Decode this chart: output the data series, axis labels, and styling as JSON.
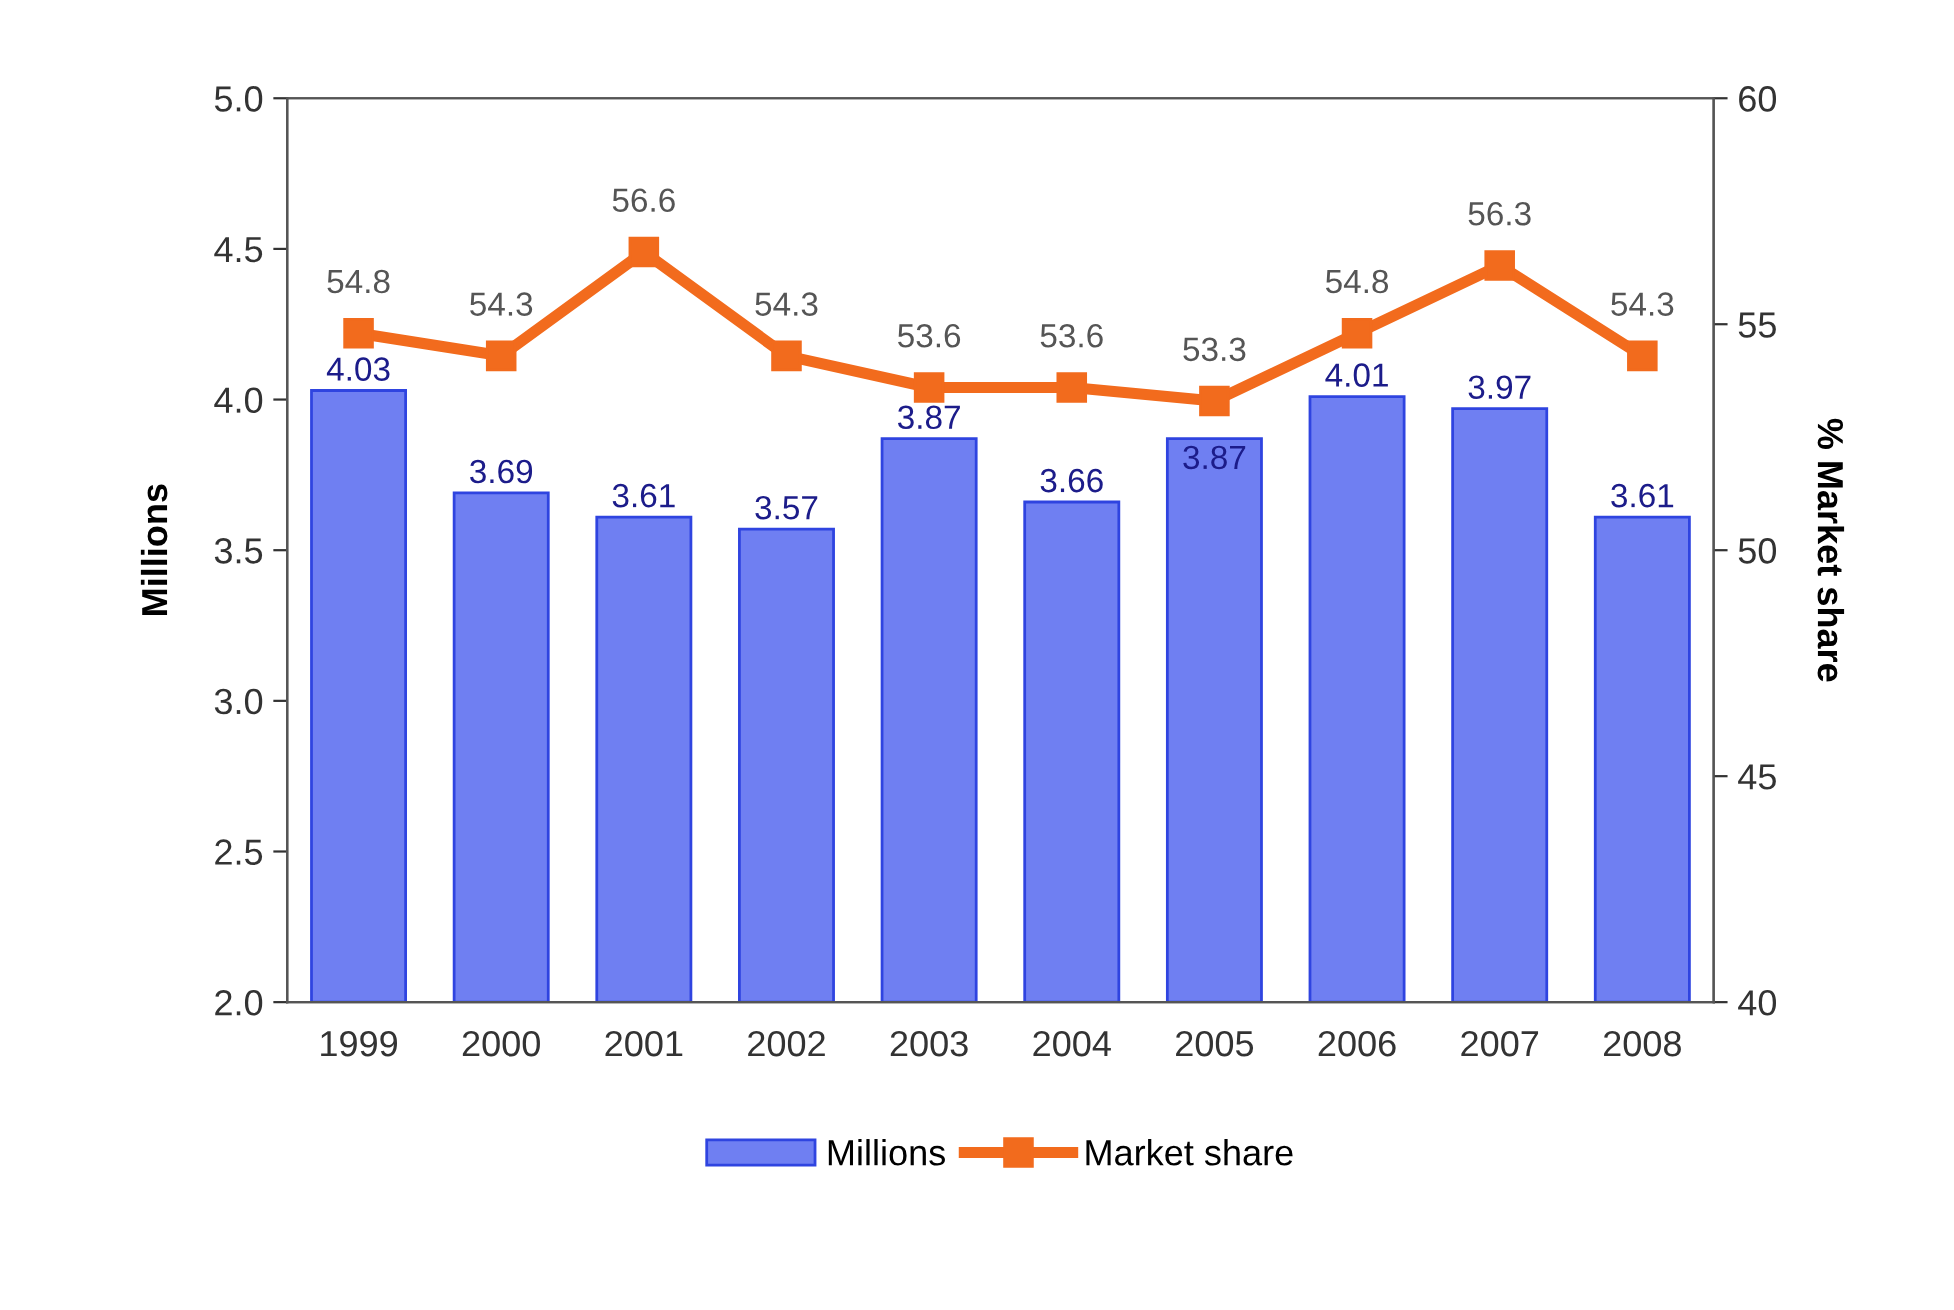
{
  "chart_data": {
    "type": "bar",
    "categories": [
      "1999",
      "2000",
      "2001",
      "2002",
      "2003",
      "2004",
      "2005",
      "2006",
      "2007",
      "2008"
    ],
    "series": [
      {
        "name": "Millions",
        "color": "#6f7ff2",
        "values": [
          4.03,
          3.69,
          3.61,
          3.57,
          3.87,
          3.66,
          3.87,
          4.01,
          3.97,
          3.61
        ]
      },
      {
        "name": "Market share",
        "type": "line",
        "axis": "y2",
        "color": "#f26b1d",
        "marker": "square",
        "values": [
          54.8,
          54.3,
          56.6,
          54.3,
          53.6,
          53.6,
          53.3,
          54.8,
          56.3,
          54.3
        ]
      }
    ],
    "ylabel": "Millions",
    "y2label": "% Market share",
    "ylim": [
      2.0,
      5.0
    ],
    "yticks": [
      {
        "value": 2.0,
        "label": "2.0"
      },
      {
        "value": 2.5,
        "label": "2.5"
      },
      {
        "value": 3.0,
        "label": "3.0"
      },
      {
        "value": 3.5,
        "label": "3.5"
      },
      {
        "value": 4.0,
        "label": "4.0"
      },
      {
        "value": 4.5,
        "label": "4.5"
      },
      {
        "value": 5.0,
        "label": "5.0"
      }
    ],
    "y2lim": [
      40,
      60
    ],
    "y2ticks": [
      40,
      45,
      50,
      55,
      60
    ],
    "data_labels": true,
    "grid": false,
    "legend": "bottom"
  }
}
